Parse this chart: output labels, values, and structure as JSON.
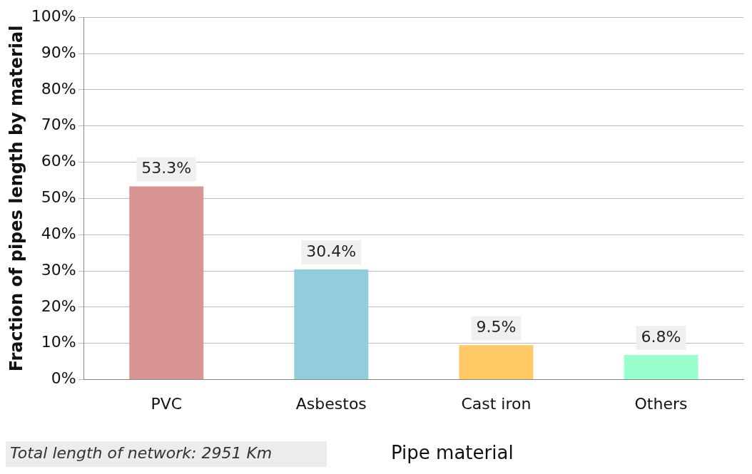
{
  "chart_data": {
    "type": "bar",
    "xlabel": "Pipe material",
    "ylabel": "Fraction of pipes length by material",
    "categories": [
      "PVC",
      "Asbestos",
      "Cast iron",
      "Others"
    ],
    "values": [
      53.3,
      30.4,
      9.5,
      6.8
    ],
    "colors": [
      "#d99594",
      "#92cddc",
      "#ffc966",
      "#99ffcc"
    ],
    "value_labels": [
      "53.3%",
      "30.4%",
      "9.5%",
      "6.8%"
    ],
    "ylim": [
      0,
      100
    ],
    "yticks": [
      {
        "value": 0,
        "label": "0%"
      },
      {
        "value": 10,
        "label": "10%"
      },
      {
        "value": 20,
        "label": "20%"
      },
      {
        "value": 30,
        "label": "30%"
      },
      {
        "value": 40,
        "label": "40%"
      },
      {
        "value": 50,
        "label": "50%"
      },
      {
        "value": 60,
        "label": "60%"
      },
      {
        "value": 70,
        "label": "70%"
      },
      {
        "value": 80,
        "label": "80%"
      },
      {
        "value": 90,
        "label": "90%"
      },
      {
        "value": 100,
        "label": "100%"
      }
    ],
    "grid": "y",
    "legend": false,
    "annotations": [
      "Total length of network: 2951 Km"
    ]
  }
}
